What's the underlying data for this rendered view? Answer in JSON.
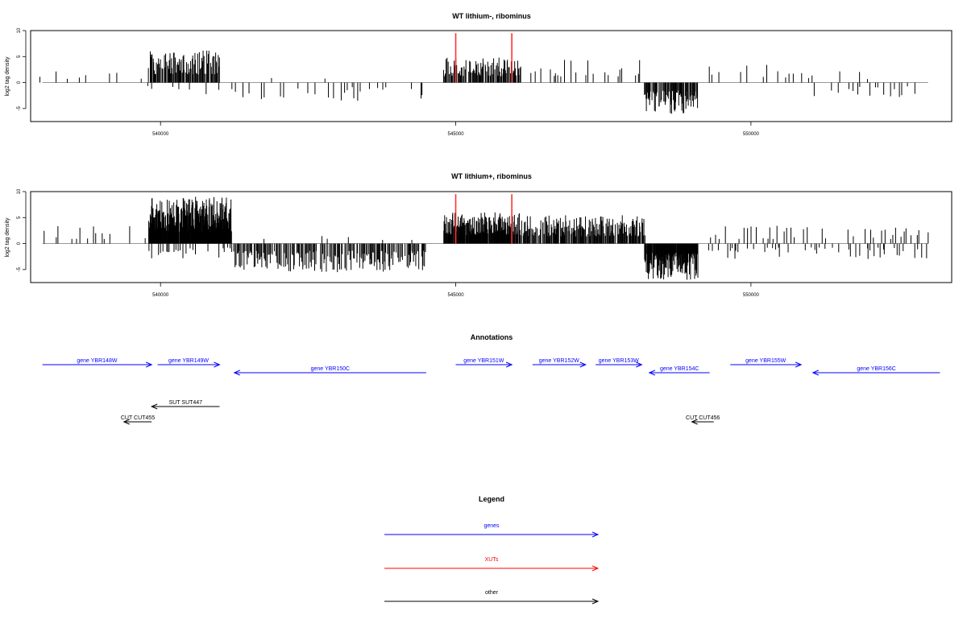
{
  "chart_data": [
    {
      "type": "bar",
      "title": "WT lithium-, ribominus",
      "ylabel": "log2 tag density",
      "xlim": [
        537800,
        553400
      ],
      "ylim": [
        -7.5,
        10
      ],
      "xticks": [
        "540000",
        "545000",
        "550000"
      ],
      "xtick_values": [
        540000,
        545000,
        550000
      ],
      "yticks": [
        "10",
        "5",
        "0",
        "-5"
      ],
      "ytick_values": [
        10,
        5,
        0,
        -5
      ],
      "baseline_range": [
        538000,
        553000
      ],
      "red_marks": [
        545000,
        545950
      ],
      "bar_color": "#000000",
      "mark_color": "#ff3333",
      "seed": 11,
      "density_regions": [
        {
          "from": 538000,
          "to": 539800,
          "step": 190,
          "dir": 1,
          "max": 2.5,
          "prob": 0.55
        },
        {
          "from": 539800,
          "to": 541000,
          "step": 12,
          "dir": 1,
          "max": 6.2,
          "prob": 0.9
        },
        {
          "from": 539800,
          "to": 541000,
          "step": 60,
          "dir": -1,
          "max": 2.5,
          "prob": 0.35
        },
        {
          "from": 541200,
          "to": 544500,
          "step": 55,
          "dir": -1,
          "max": 3.5,
          "prob": 0.45
        },
        {
          "from": 541200,
          "to": 544500,
          "step": 160,
          "dir": 1,
          "max": 1.2,
          "prob": 0.3
        },
        {
          "from": 544800,
          "to": 546100,
          "step": 12,
          "dir": 1,
          "max": 4.8,
          "prob": 0.85
        },
        {
          "from": 546200,
          "to": 548200,
          "step": 45,
          "dir": 1,
          "max": 4.5,
          "prob": 0.55
        },
        {
          "from": 548200,
          "to": 549100,
          "step": 10,
          "dir": -1,
          "max": 6.0,
          "prob": 0.9
        },
        {
          "from": 549300,
          "to": 551000,
          "step": 55,
          "dir": 1,
          "max": 3.5,
          "prob": 0.45
        },
        {
          "from": 551000,
          "to": 553000,
          "step": 60,
          "dir": -1,
          "max": 2.8,
          "prob": 0.45
        },
        {
          "from": 551000,
          "to": 553000,
          "step": 200,
          "dir": 1,
          "max": 2.2,
          "prob": 0.3
        }
      ]
    },
    {
      "type": "bar",
      "title": "WT lithium+, ribominus",
      "ylabel": "log2 tag density",
      "xlim": [
        537800,
        553400
      ],
      "ylim": [
        -7.5,
        10
      ],
      "xticks": [
        "540000",
        "545000",
        "550000"
      ],
      "xtick_values": [
        540000,
        545000,
        550000
      ],
      "yticks": [
        "10",
        "5",
        "0",
        "-5"
      ],
      "ytick_values": [
        10,
        5,
        0,
        -5
      ],
      "baseline_range": [
        538000,
        553000
      ],
      "red_marks": [
        545000,
        545950
      ],
      "bar_color": "#000000",
      "mark_color": "#ff3333",
      "seed": 29,
      "density_regions": [
        {
          "from": 538000,
          "to": 539800,
          "step": 70,
          "dir": 1,
          "max": 3.5,
          "prob": 0.55
        },
        {
          "from": 539800,
          "to": 541200,
          "step": 5,
          "dir": 1,
          "max": 9.0,
          "prob": 0.95
        },
        {
          "from": 539800,
          "to": 541200,
          "step": 30,
          "dir": -1,
          "max": 3.0,
          "prob": 0.5
        },
        {
          "from": 541200,
          "to": 544500,
          "step": 14,
          "dir": -1,
          "max": 5.5,
          "prob": 0.75
        },
        {
          "from": 541200,
          "to": 544500,
          "step": 110,
          "dir": 1,
          "max": 1.5,
          "prob": 0.3
        },
        {
          "from": 544800,
          "to": 546100,
          "step": 6,
          "dir": 1,
          "max": 6.0,
          "prob": 0.9
        },
        {
          "from": 546100,
          "to": 548200,
          "step": 10,
          "dir": 1,
          "max": 5.5,
          "prob": 0.85
        },
        {
          "from": 548200,
          "to": 549100,
          "step": 6,
          "dir": -1,
          "max": 7.0,
          "prob": 0.95
        },
        {
          "from": 549300,
          "to": 553000,
          "step": 45,
          "dir": 1,
          "max": 3.5,
          "prob": 0.45
        },
        {
          "from": 549300,
          "to": 553000,
          "step": 35,
          "dir": -1,
          "max": 3.0,
          "prob": 0.5
        }
      ]
    }
  ],
  "annotations": {
    "title": "Annotations",
    "xlim": [
      537800,
      553400
    ],
    "features": [
      {
        "label": "gene YBR148W",
        "start": 538000,
        "end": 539850,
        "strand": "+",
        "row": 0,
        "color": "#0000ff"
      },
      {
        "label": "gene YBR149W",
        "start": 539950,
        "end": 541000,
        "strand": "+",
        "row": 0,
        "color": "#0000ff"
      },
      {
        "label": "gene YBR150C",
        "start": 541250,
        "end": 544500,
        "strand": "-",
        "row": 1,
        "color": "#0000ff"
      },
      {
        "label": "gene YBR151W",
        "start": 545000,
        "end": 545950,
        "strand": "+",
        "row": 0,
        "color": "#0000ff"
      },
      {
        "label": "gene YBR152W",
        "start": 546300,
        "end": 547200,
        "strand": "+",
        "row": 0,
        "color": "#0000ff"
      },
      {
        "label": "gene YBR153W",
        "start": 547370,
        "end": 548150,
        "strand": "+",
        "row": 0,
        "color": "#0000ff"
      },
      {
        "label": "gene YBR154C",
        "start": 548280,
        "end": 549300,
        "strand": "-",
        "row": 1,
        "color": "#0000ff"
      },
      {
        "label": "gene YBR155W",
        "start": 549650,
        "end": 550850,
        "strand": "+",
        "row": 0,
        "color": "#0000ff"
      },
      {
        "label": "gene YBR156C",
        "start": 551050,
        "end": 553200,
        "strand": "-",
        "row": 1,
        "color": "#0000ff"
      },
      {
        "label": "SUT SUT447",
        "start": 539850,
        "end": 541000,
        "strand": "-",
        "row": 2,
        "color": "#000000"
      },
      {
        "label": "CUT CUT455",
        "start": 539380,
        "end": 539850,
        "strand": "-",
        "row": 3,
        "color": "#000000"
      },
      {
        "label": "CUT CUT456",
        "start": 549000,
        "end": 549370,
        "strand": "-",
        "row": 3,
        "color": "#000000"
      }
    ]
  },
  "legend": {
    "title": "Legend",
    "items": [
      {
        "label": "genes",
        "color": "#0000ff"
      },
      {
        "label": "XUTs",
        "color": "#ff0000"
      },
      {
        "label": "other",
        "color": "#000000"
      }
    ]
  }
}
